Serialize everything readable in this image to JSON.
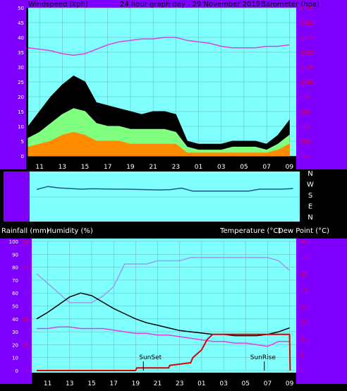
{
  "colors": {
    "background": "#000000",
    "side_panel": "#8000ff",
    "plot_cyan": "#80ffff",
    "gridline": "#66b3b3",
    "header_text": "#000000",
    "axis_text": "#ffffff",
    "gust": "#000000",
    "wind_max": "#80ff80",
    "wind_avg": "#ff8c00",
    "barometer": "#e040e0",
    "direction": "#1a5a8a",
    "temperature": "#9b9bf0",
    "dew_point": "#e040e0",
    "humidity": "#000000",
    "rainfall": "#e00000",
    "right_scale_red": "#ff0000"
  },
  "header": {
    "left_label": "Windspeed (kph)",
    "center_label": "24 hour graph day : 29 November 2019",
    "right_label": "Barometer (hpa)"
  },
  "direction_labels": [
    "N",
    "W",
    "S",
    "E",
    "N"
  ],
  "lower_header": {
    "rainfall_label": "Rainfall (mm)",
    "humidity_label": "Humidity (%)",
    "temp_label": "Temperature (°C)",
    "dew_label": "Dew Point (°C)"
  },
  "annotations": {
    "sunset": "SunSet",
    "sunrise": "SunRise"
  },
  "chart_data": [
    {
      "type": "line",
      "x_tick_labels": [
        "11",
        "13",
        "15",
        "17",
        "19",
        "21",
        "23",
        "01",
        "03",
        "05",
        "07",
        "09"
      ],
      "left_axis": {
        "ticks": [
          "0",
          "5",
          "10",
          "15",
          "20",
          "25",
          "30",
          "35",
          "40",
          "45",
          "50"
        ],
        "ylim": [
          0,
          50
        ]
      },
      "right_axis": {
        "ticks": [
          "975",
          "980",
          "985",
          "990",
          "995",
          "1000",
          "1005",
          "1010",
          "1015",
          "1020",
          "1025"
        ],
        "ylim": [
          975,
          1025
        ]
      },
      "x_hours": [
        10,
        11,
        12,
        13,
        14,
        15,
        16,
        17,
        18,
        19,
        20,
        21,
        22,
        23,
        24,
        25,
        26,
        27,
        28,
        29,
        30,
        31,
        32,
        33
      ],
      "gust": [
        10,
        15,
        20,
        24,
        27,
        25,
        18,
        17,
        16,
        15,
        14,
        15,
        15,
        14,
        5,
        4,
        4,
        4,
        5,
        5,
        5,
        4,
        7,
        12
      ],
      "wind_max": [
        6,
        8,
        11,
        14,
        16,
        15,
        11,
        10,
        10,
        9,
        9,
        9,
        9,
        8,
        3,
        2,
        2,
        2,
        3,
        3,
        3,
        2,
        4,
        7
      ],
      "wind_avg": [
        3,
        4,
        5,
        7,
        8,
        7,
        5,
        5,
        5,
        4,
        4,
        4,
        4,
        4,
        1,
        1,
        1,
        1,
        1,
        1,
        1,
        1,
        2,
        4
      ],
      "barometer": [
        1011.5,
        1011,
        1010.5,
        1009.5,
        1009,
        1009.5,
        1011,
        1012.5,
        1013.5,
        1014,
        1014.5,
        1014.5,
        1015,
        1015,
        1014,
        1013.5,
        1013,
        1012,
        1011.5,
        1011.5,
        1011.5,
        1012,
        1012,
        1012.5
      ]
    },
    {
      "type": "line",
      "series": [
        {
          "x": [
            10,
            11,
            12,
            13,
            14,
            15,
            16,
            17,
            18,
            19,
            20,
            21,
            22,
            23,
            24,
            25,
            26,
            27,
            28,
            29,
            30,
            31,
            32,
            33
          ],
          "values": [
            238,
            260,
            250,
            245,
            240,
            243,
            241,
            240,
            240,
            238,
            236,
            234,
            237,
            248,
            225,
            225,
            225,
            225,
            225,
            225,
            240,
            240,
            240,
            245
          ]
        }
      ],
      "direction_axis": [
        "N",
        "W",
        "S",
        "E",
        "N"
      ],
      "ylim": [
        0,
        360
      ]
    },
    {
      "type": "line",
      "x_tick_labels": [
        "11",
        "13",
        "15",
        "17",
        "19",
        "21",
        "23",
        "01",
        "03",
        "05",
        "07",
        "09"
      ],
      "left_axis": {
        "ticks": [
          "0",
          "10",
          "20",
          "30",
          "40",
          "50",
          "60",
          "70",
          "80",
          "90",
          "100"
        ],
        "ylim": [
          0,
          100
        ]
      },
      "left_red_axis": {
        "ticks": [
          "0",
          "10",
          "20",
          "30",
          "40",
          "50"
        ],
        "ylim": [
          0,
          50
        ]
      },
      "right_axis": {
        "ticks": [
          "0",
          "5",
          "10",
          "15",
          "20",
          "25",
          "30",
          "35",
          "40"
        ],
        "ylim": [
          0,
          40
        ]
      },
      "temperature": {
        "x": [
          10,
          11,
          12,
          13,
          14,
          15,
          16,
          17,
          18,
          19,
          20,
          21,
          22,
          23,
          24,
          25,
          26,
          27,
          28,
          29,
          30,
          31,
          32,
          33
        ],
        "values": [
          30,
          27,
          24,
          21,
          21,
          21,
          23,
          26,
          33,
          33,
          33,
          34,
          34,
          34,
          35,
          35,
          35,
          35,
          35,
          35,
          35,
          35,
          34,
          31
        ]
      },
      "dew_point": {
        "x": [
          10,
          11,
          12,
          13,
          14,
          15,
          16,
          17,
          18,
          19,
          20,
          21,
          22,
          23,
          24,
          25,
          26,
          27,
          28,
          29,
          30,
          31,
          32,
          33
        ],
        "values": [
          13,
          13,
          13.5,
          13.5,
          13,
          13,
          13,
          12.5,
          12,
          11.5,
          11.5,
          11,
          11,
          10.5,
          10,
          9.5,
          9,
          9,
          8.5,
          8.5,
          8,
          7.5,
          9,
          9
        ]
      },
      "humidity": {
        "x": [
          10,
          11,
          12,
          13,
          14,
          15,
          16,
          17,
          18,
          19,
          20,
          21,
          22,
          23,
          24,
          25,
          26,
          27,
          28,
          29,
          30,
          31,
          32,
          33
        ],
        "values": [
          40,
          45,
          51,
          57,
          60,
          58,
          53,
          48,
          44,
          40,
          37,
          35,
          33,
          31,
          30,
          29,
          28,
          28,
          27,
          27,
          27,
          28,
          30,
          33
        ]
      },
      "rainfall": {
        "x": [
          10,
          19,
          19.1,
          22,
          22.1,
          24,
          24.2,
          25,
          25.5,
          26,
          27,
          28,
          29,
          30,
          31,
          32,
          33,
          33.05
        ],
        "values": [
          0,
          0,
          1,
          1,
          2,
          3,
          5,
          8,
          12,
          14,
          14,
          14,
          14,
          14,
          14,
          14,
          14,
          0
        ]
      },
      "sunset_hour": 19.7,
      "sunrise_hour": 30.7
    }
  ]
}
